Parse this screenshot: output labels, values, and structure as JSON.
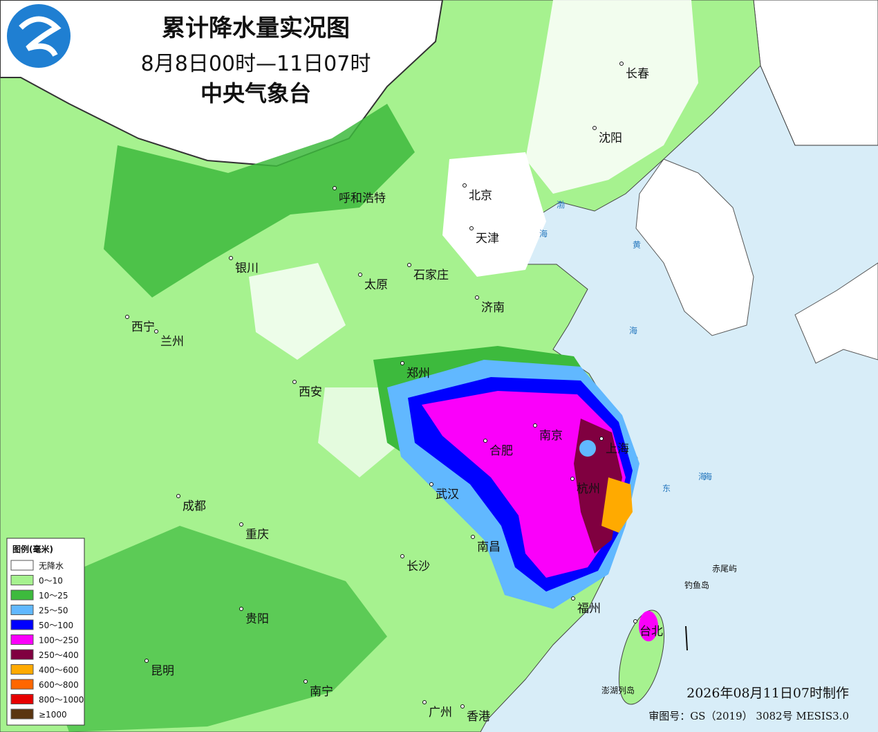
{
  "header": {
    "title": "累计降水量实况图",
    "period": "8月8日00时—11日07时",
    "agency": "中央气象台"
  },
  "cities": [
    "长春",
    "沈阳",
    "北京",
    "呼和浩特",
    "天津",
    "银川",
    "石家庄",
    "太原",
    "济南",
    "西宁",
    "兰州",
    "郑州",
    "西安",
    "南京",
    "合肥",
    "上海",
    "杭州",
    "成都",
    "武汉",
    "重庆",
    "南昌",
    "长沙",
    "福州",
    "贵阳",
    "台北",
    "昆明",
    "南宁",
    "广州",
    "香港"
  ],
  "seas": [
    "渤",
    "海",
    "黄",
    "海",
    "海",
    "东",
    "海"
  ],
  "islands": [
    "赤尾屿",
    "钓鱼岛",
    "澎湖列岛"
  ],
  "legend": {
    "title": "图例(毫米)",
    "items": [
      {
        "label": "无降水",
        "color": "#ffffff"
      },
      {
        "label": "0～10",
        "color": "#a6f28f"
      },
      {
        "label": "10～25",
        "color": "#3dba3d"
      },
      {
        "label": "25～50",
        "color": "#61b8ff"
      },
      {
        "label": "50～100",
        "color": "#0000ff"
      },
      {
        "label": "100～250",
        "color": "#fa00fa"
      },
      {
        "label": "250～400",
        "color": "#800040"
      },
      {
        "label": "400～600",
        "color": "#ffaa00"
      },
      {
        "label": "600～800",
        "color": "#ff6600"
      },
      {
        "label": "800～1000",
        "color": "#e60000"
      },
      {
        "label": "≥1000",
        "color": "#5a3510"
      }
    ]
  },
  "footer": {
    "made": "2026年08月11日07时制作",
    "approval": "审图号：GS（2019） 3082号 MESIS3.0"
  }
}
